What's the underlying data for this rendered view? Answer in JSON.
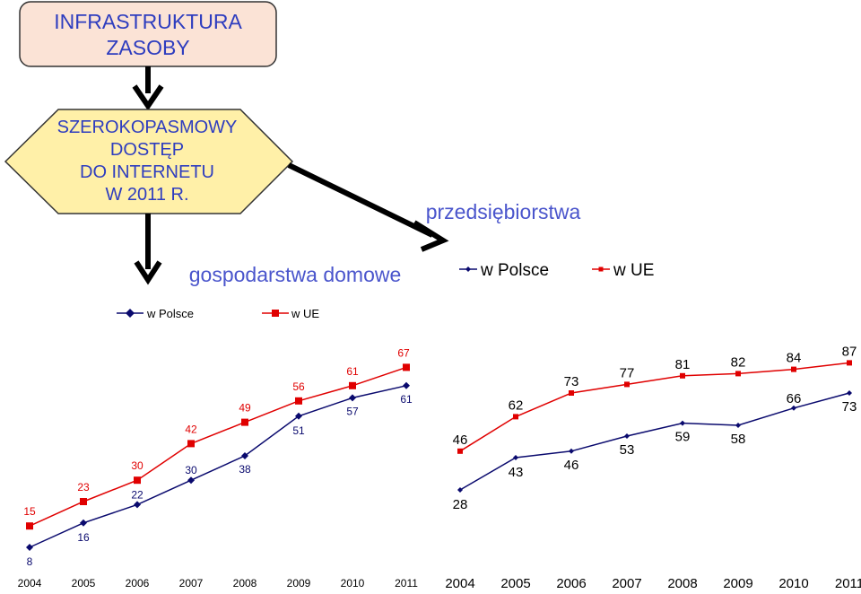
{
  "diagram": {
    "top_box": [
      "INFRASTRUKTURA",
      "ZASOBY"
    ],
    "hexagon": [
      "SZEROKOPASMOWY",
      "DOSTĘP",
      "DO INTERNETU",
      "W 2011 R."
    ],
    "label_households": "gospodarstwa domowe",
    "label_enterprises": "przedsiębiorstwa"
  },
  "colors": {
    "box_fill": "#fbe3d6",
    "hex_fill": "#fff0a8",
    "heading_text": "#2e3dbf",
    "label_text": "#4a55cc",
    "poland": "#0a0a6e",
    "eu": "#e00000"
  },
  "chart_data": [
    {
      "type": "line",
      "name": "gospodarstwa domowe",
      "categories": [
        "2004",
        "2005",
        "2006",
        "2007",
        "2008",
        "2009",
        "2010",
        "2011"
      ],
      "series": [
        {
          "name": "w Polsce",
          "marker": "diamond",
          "values": [
            8,
            16,
            22,
            30,
            38,
            51,
            57,
            61
          ]
        },
        {
          "name": "w UE",
          "marker": "square",
          "values": [
            15,
            23,
            30,
            42,
            49,
            56,
            61,
            67
          ]
        }
      ],
      "legend": "top",
      "grid": false
    },
    {
      "type": "line",
      "name": "przedsiębiorstwa",
      "categories": [
        "2004",
        "2005",
        "2006",
        "2007",
        "2008",
        "2009",
        "2010",
        "2011"
      ],
      "series": [
        {
          "name": "w Polsce",
          "marker": "diamond",
          "values": [
            28,
            43,
            46,
            53,
            59,
            58,
            66,
            73
          ]
        },
        {
          "name": "w UE",
          "marker": "square",
          "values": [
            46,
            62,
            73,
            77,
            81,
            82,
            84,
            87
          ]
        }
      ],
      "legend": "top",
      "grid": false
    }
  ]
}
